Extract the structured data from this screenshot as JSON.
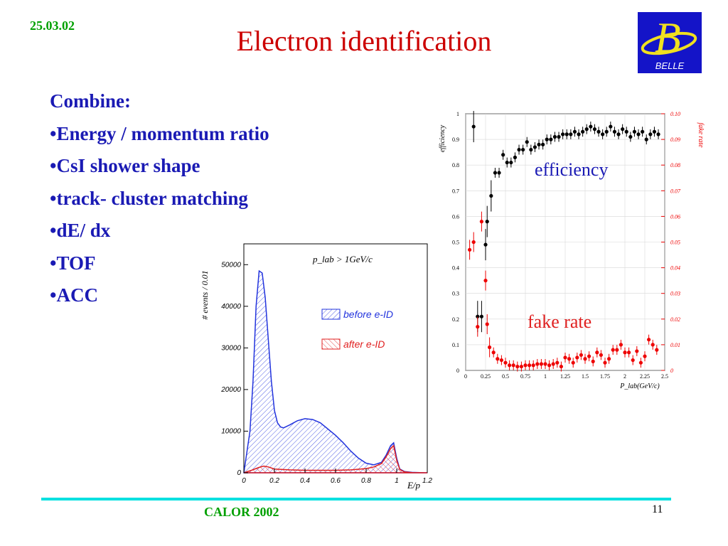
{
  "header": {
    "date": "25.03.02",
    "title": "Electron identification",
    "logo_text": "BELLE",
    "logo_letter": "B"
  },
  "bullets": {
    "heading": "Combine:",
    "items": [
      "•Energy / momentum ratio",
      "•CsI shower shape",
      "•track- cluster matching",
      "•dE/ dx",
      "•TOF",
      "•ACC"
    ]
  },
  "footer": {
    "conference": "CALOR 2002",
    "page": "11"
  },
  "annotations": {
    "efficiency": "efficiency",
    "fake_rate": "fake rate"
  },
  "colors": {
    "title": "#cc0000",
    "bullets": "#1a1ab4",
    "date_footer": "#00a000",
    "logo_bg": "#1414c8",
    "logo_yellow": "#f0e020",
    "rule": "#00e0e0",
    "efficiency": "#000000",
    "fake_rate": "#ee0000",
    "before": "#2233dd",
    "after": "#e02020"
  },
  "chart_data": [
    {
      "type": "area",
      "title": "p_lab > 1GeV/c",
      "xlabel": "E/p",
      "ylabel": "# events / 0.01",
      "xlim": [
        0,
        1.2
      ],
      "ylim": [
        0,
        55000
      ],
      "xticks": [
        "0",
        "0.2",
        "0.4",
        "0.6",
        "0.8",
        "1",
        "1.2"
      ],
      "yticks": [
        "0",
        "10000",
        "20000",
        "30000",
        "40000",
        "50000"
      ],
      "legend_position": "right",
      "series": [
        {
          "name": "before e-ID",
          "x": [
            0,
            0.02,
            0.04,
            0.06,
            0.08,
            0.1,
            0.12,
            0.14,
            0.16,
            0.18,
            0.2,
            0.22,
            0.24,
            0.26,
            0.3,
            0.35,
            0.4,
            0.45,
            0.5,
            0.55,
            0.6,
            0.65,
            0.7,
            0.75,
            0.8,
            0.85,
            0.9,
            0.93,
            0.96,
            0.98,
            1.0,
            1.02,
            1.05,
            1.1,
            1.15,
            1.2
          ],
          "y": [
            0,
            5000,
            10000,
            22000,
            40000,
            48500,
            48000,
            42000,
            32000,
            22000,
            15000,
            12000,
            11000,
            10800,
            11500,
            12500,
            13000,
            12800,
            12000,
            10500,
            9000,
            7200,
            5200,
            3500,
            2300,
            1900,
            2500,
            4200,
            6500,
            7200,
            3500,
            900,
            300,
            100,
            30,
            0
          ]
        },
        {
          "name": "after e-ID",
          "x": [
            0,
            0.05,
            0.1,
            0.13,
            0.16,
            0.2,
            0.3,
            0.4,
            0.5,
            0.6,
            0.7,
            0.8,
            0.85,
            0.9,
            0.93,
            0.96,
            0.98,
            1.0,
            1.02,
            1.05,
            1.1,
            1.2
          ],
          "y": [
            0,
            600,
            1300,
            1600,
            1400,
            900,
            700,
            600,
            600,
            600,
            700,
            1000,
            1400,
            2200,
            3800,
            5800,
            6500,
            3000,
            800,
            200,
            50,
            0
          ]
        }
      ]
    },
    {
      "type": "scatter",
      "xlabel": "P_lab(GeV/c)",
      "ylabel": "efficiency",
      "y2label": "fake rate",
      "xlim": [
        0,
        2.5
      ],
      "ylim": [
        0,
        1
      ],
      "y2lim": [
        0,
        0.1
      ],
      "xticks": [
        "0",
        "0.25",
        "0.5",
        "0.75",
        "1",
        "1.25",
        "1.5",
        "1.75",
        "2",
        "2.25",
        "2.5"
      ],
      "yticks": [
        "0",
        "0.1",
        "0.2",
        "0.3",
        "0.4",
        "0.5",
        "0.6",
        "0.7",
        "0.8",
        "0.9",
        "1"
      ],
      "y2ticks": [
        "0",
        "0.01",
        "0.02",
        "0.03",
        "0.04",
        "0.05",
        "0.06",
        "0.07",
        "0.08",
        "0.09",
        "0.10"
      ],
      "series": [
        {
          "name": "efficiency",
          "axis": "left",
          "x": [
            0.1,
            0.15,
            0.2,
            0.25,
            0.27,
            0.32,
            0.37,
            0.42,
            0.47,
            0.52,
            0.57,
            0.62,
            0.67,
            0.72,
            0.77,
            0.82,
            0.87,
            0.92,
            0.97,
            1.02,
            1.07,
            1.12,
            1.17,
            1.22,
            1.27,
            1.32,
            1.37,
            1.42,
            1.47,
            1.52,
            1.57,
            1.62,
            1.67,
            1.72,
            1.77,
            1.82,
            1.87,
            1.92,
            1.97,
            2.02,
            2.07,
            2.12,
            2.17,
            2.22,
            2.27,
            2.32,
            2.37,
            2.42
          ],
          "y": [
            0.95,
            0.21,
            0.21,
            0.49,
            0.58,
            0.68,
            0.77,
            0.77,
            0.84,
            0.81,
            0.81,
            0.83,
            0.86,
            0.86,
            0.89,
            0.86,
            0.87,
            0.88,
            0.88,
            0.9,
            0.9,
            0.91,
            0.91,
            0.92,
            0.92,
            0.92,
            0.93,
            0.92,
            0.93,
            0.94,
            0.95,
            0.94,
            0.93,
            0.92,
            0.93,
            0.95,
            0.93,
            0.92,
            0.94,
            0.93,
            0.91,
            0.93,
            0.92,
            0.93,
            0.9,
            0.92,
            0.93,
            0.92
          ]
        },
        {
          "name": "fake rate",
          "axis": "right",
          "x": [
            0.05,
            0.1,
            0.15,
            0.2,
            0.25,
            0.27,
            0.3,
            0.35,
            0.4,
            0.45,
            0.5,
            0.55,
            0.6,
            0.65,
            0.7,
            0.75,
            0.8,
            0.85,
            0.9,
            0.95,
            1.0,
            1.05,
            1.1,
            1.15,
            1.2,
            1.25,
            1.3,
            1.35,
            1.4,
            1.45,
            1.5,
            1.55,
            1.6,
            1.65,
            1.7,
            1.75,
            1.8,
            1.85,
            1.9,
            1.95,
            2.0,
            2.05,
            2.1,
            2.15,
            2.2,
            2.25,
            2.3,
            2.35,
            2.4
          ],
          "y": [
            0.047,
            0.05,
            0.017,
            0.058,
            0.035,
            0.018,
            0.009,
            0.007,
            0.0045,
            0.004,
            0.003,
            0.002,
            0.002,
            0.0015,
            0.0015,
            0.002,
            0.002,
            0.002,
            0.0025,
            0.0025,
            0.0025,
            0.002,
            0.0025,
            0.003,
            0.0015,
            0.005,
            0.0045,
            0.003,
            0.005,
            0.006,
            0.0045,
            0.0055,
            0.0035,
            0.007,
            0.006,
            0.003,
            0.0045,
            0.008,
            0.008,
            0.01,
            0.007,
            0.007,
            0.004,
            0.0075,
            0.003,
            0.0055,
            0.012,
            0.01,
            0.008
          ]
        }
      ]
    }
  ]
}
